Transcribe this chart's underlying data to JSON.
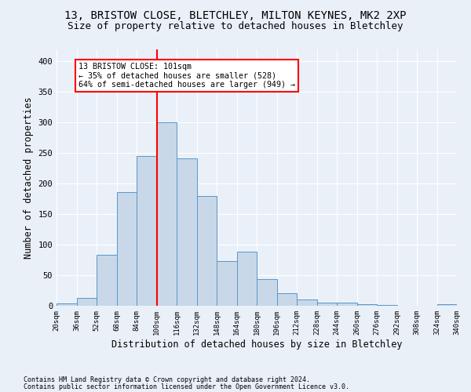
{
  "title1": "13, BRISTOW CLOSE, BLETCHLEY, MILTON KEYNES, MK2 2XP",
  "title2": "Size of property relative to detached houses in Bletchley",
  "xlabel": "Distribution of detached houses by size in Bletchley",
  "ylabel": "Number of detached properties",
  "footer1": "Contains HM Land Registry data © Crown copyright and database right 2024.",
  "footer2": "Contains public sector information licensed under the Open Government Licence v3.0.",
  "bins": [
    "20sqm",
    "36sqm",
    "52sqm",
    "68sqm",
    "84sqm",
    "100sqm",
    "116sqm",
    "132sqm",
    "148sqm",
    "164sqm",
    "180sqm",
    "196sqm",
    "212sqm",
    "228sqm",
    "244sqm",
    "260sqm",
    "276sqm",
    "292sqm",
    "308sqm",
    "324sqm",
    "340sqm"
  ],
  "values": [
    4,
    13,
    83,
    186,
    245,
    300,
    241,
    180,
    73,
    88,
    44,
    21,
    10,
    5,
    5,
    3,
    1,
    0,
    0,
    2
  ],
  "bar_color": "#c8d8e8",
  "bar_edge_color": "#5a96c8",
  "vline_color": "red",
  "annotation_text": "13 BRISTOW CLOSE: 101sqm\n← 35% of detached houses are smaller (528)\n64% of semi-detached houses are larger (949) →",
  "annotation_box_color": "white",
  "annotation_box_edge": "red",
  "ylim": [
    0,
    420
  ],
  "background_color": "#eaf0f8",
  "plot_bg_color": "#eaf0f8",
  "grid_color": "white",
  "title1_fontsize": 10,
  "title2_fontsize": 9,
  "xlabel_fontsize": 8.5,
  "ylabel_fontsize": 8.5,
  "footer_fontsize": 6.0
}
